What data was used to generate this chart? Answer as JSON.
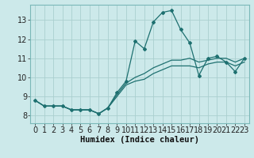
{
  "title": "",
  "xlabel": "Humidex (Indice chaleur)",
  "background_color": "#cce9ea",
  "grid_color": "#aacfcf",
  "line_color": "#1e7070",
  "spine_color": "#7ab8b8",
  "x_ticks": [
    0,
    1,
    2,
    3,
    4,
    5,
    6,
    7,
    8,
    9,
    10,
    11,
    12,
    13,
    14,
    15,
    16,
    17,
    18,
    19,
    20,
    21,
    22,
    23
  ],
  "y_ticks": [
    8,
    9,
    10,
    11,
    12,
    13
  ],
  "xlim": [
    -0.5,
    23.5
  ],
  "ylim": [
    7.6,
    13.8
  ],
  "series1_x": [
    0,
    1,
    2,
    3,
    4,
    5,
    6,
    7,
    8,
    9,
    10,
    11,
    12,
    13,
    14,
    15,
    16,
    17,
    18,
    19,
    20,
    21,
    22,
    23
  ],
  "series1_y": [
    8.8,
    8.5,
    8.5,
    8.5,
    8.3,
    8.3,
    8.3,
    8.1,
    8.4,
    9.2,
    9.8,
    11.9,
    11.5,
    12.9,
    13.4,
    13.5,
    12.5,
    11.8,
    10.1,
    11.0,
    11.1,
    10.8,
    10.3,
    11.0
  ],
  "series2_x": [
    0,
    1,
    2,
    3,
    4,
    5,
    6,
    7,
    8,
    9,
    10,
    11,
    12,
    13,
    14,
    15,
    16,
    17,
    18,
    19,
    20,
    21,
    22,
    23
  ],
  "series2_y": [
    8.8,
    8.5,
    8.5,
    8.5,
    8.3,
    8.3,
    8.3,
    8.1,
    8.4,
    9.1,
    9.7,
    10.0,
    10.2,
    10.5,
    10.7,
    10.9,
    10.9,
    11.0,
    10.8,
    10.9,
    11.0,
    11.0,
    10.8,
    11.0
  ],
  "series3_x": [
    0,
    1,
    2,
    3,
    4,
    5,
    6,
    7,
    8,
    9,
    10,
    11,
    12,
    13,
    14,
    15,
    16,
    17,
    18,
    19,
    20,
    21,
    22,
    23
  ],
  "series3_y": [
    8.8,
    8.5,
    8.5,
    8.5,
    8.3,
    8.3,
    8.3,
    8.1,
    8.4,
    9.0,
    9.6,
    9.8,
    9.9,
    10.2,
    10.4,
    10.6,
    10.6,
    10.6,
    10.5,
    10.7,
    10.8,
    10.8,
    10.6,
    10.8
  ],
  "marker": "D",
  "marker_size": 2.0,
  "line_width": 0.9,
  "tick_fontsize": 7,
  "xlabel_fontsize": 7.5
}
